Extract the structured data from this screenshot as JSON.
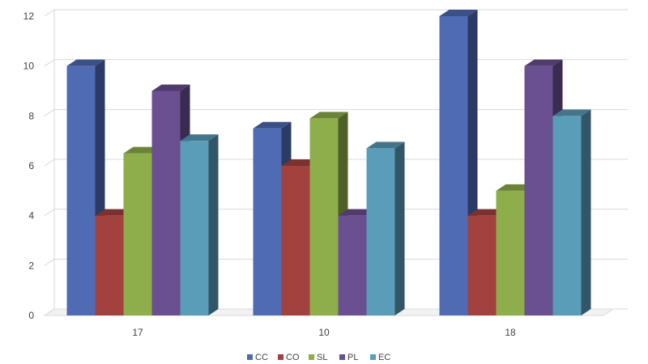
{
  "chart_data": {
    "type": "bar",
    "style": "3d-clustered-column",
    "categories": [
      "17",
      "10",
      "18"
    ],
    "series": [
      {
        "name": "CC",
        "values": [
          10,
          7.5,
          12
        ],
        "color": "#4F6BB4"
      },
      {
        "name": "CO",
        "values": [
          4,
          6,
          4
        ],
        "color": "#A2413E"
      },
      {
        "name": "SL",
        "values": [
          6.5,
          7.9,
          5
        ],
        "color": "#8EAE4B"
      },
      {
        "name": "PL",
        "values": [
          9,
          4,
          10
        ],
        "color": "#6A4F91"
      },
      {
        "name": "EC",
        "values": [
          7,
          6.7,
          8
        ],
        "color": "#5A9DB9"
      }
    ],
    "ylim": [
      0,
      12
    ],
    "yticks": [
      0,
      2,
      4,
      6,
      8,
      10,
      12
    ],
    "grid": true,
    "legend": "bottom",
    "title": "",
    "xlabel": "",
    "ylabel": ""
  }
}
